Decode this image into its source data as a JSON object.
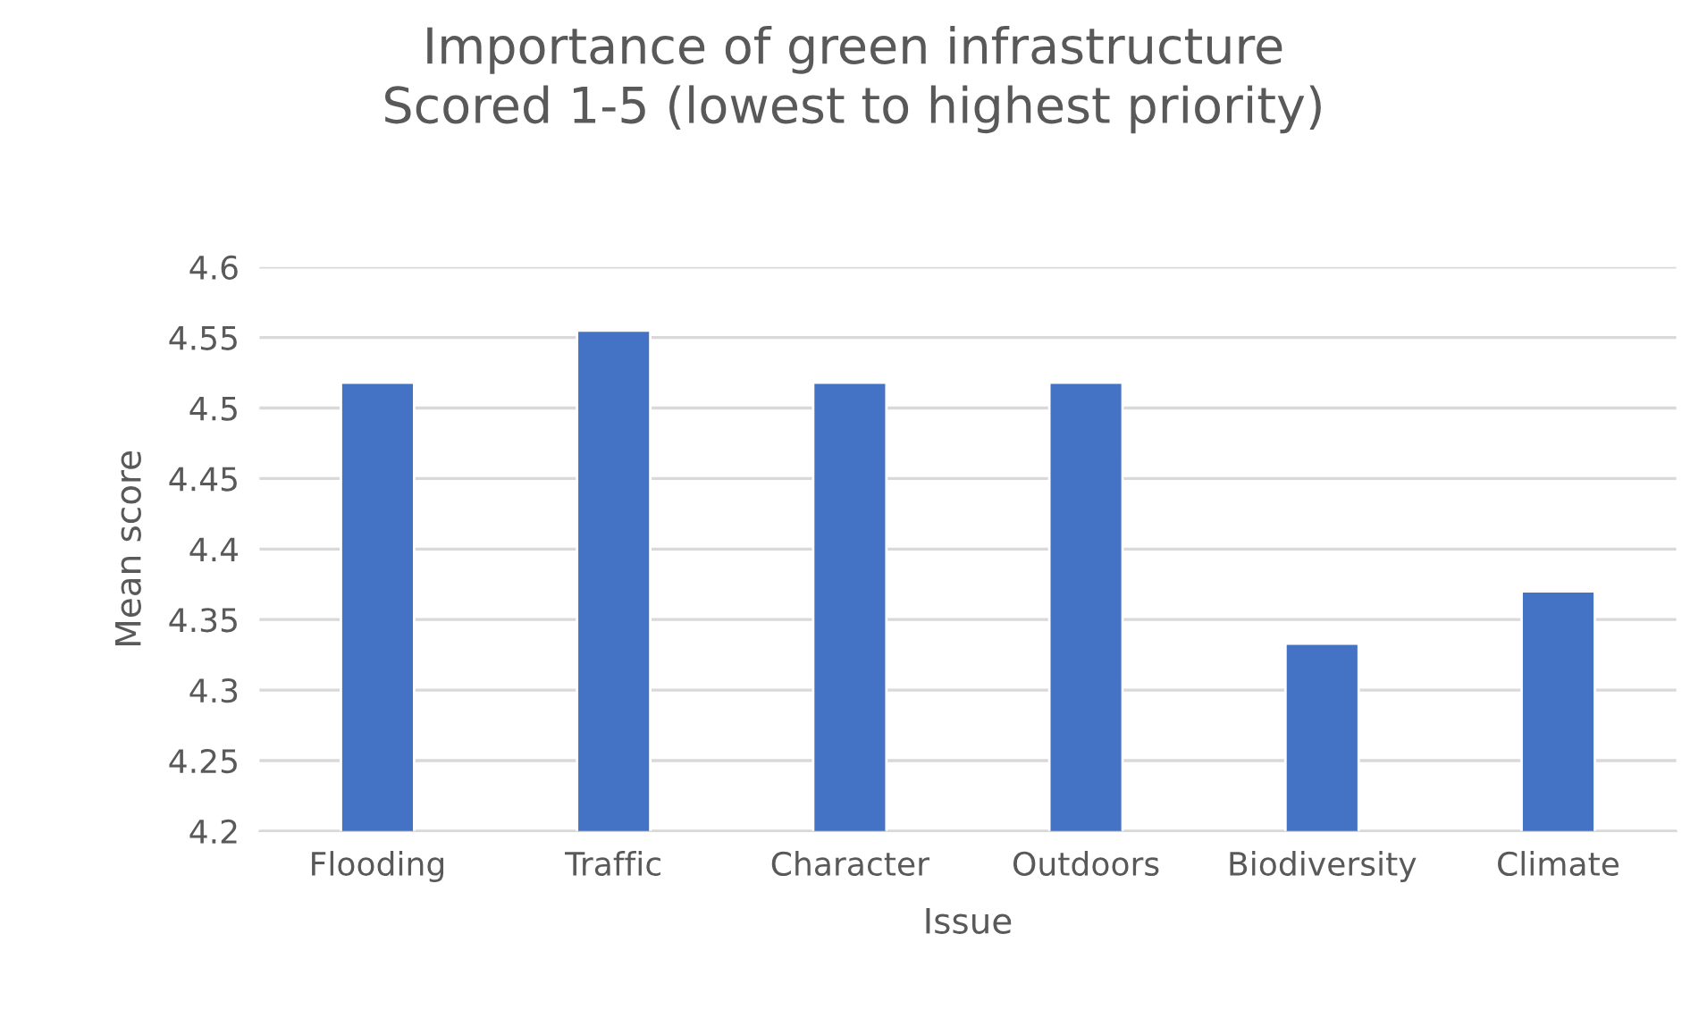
{
  "chart_data": {
    "type": "bar",
    "title": "Importance of green infrastructure\nScored 1-5 (lowest to highest priority)",
    "xlabel": "Issue",
    "ylabel": "Mean score",
    "categories": [
      "Flooding",
      "Traffic",
      "Character",
      "Outdoors",
      "Biodiversity",
      "Climate"
    ],
    "values": [
      4.518,
      4.555,
      4.518,
      4.518,
      4.333,
      4.37
    ],
    "color": "#4472c4",
    "ylim": [
      4.2,
      4.6
    ],
    "yticks": [
      4.2,
      4.25,
      4.3,
      4.35,
      4.4,
      4.45,
      4.5,
      4.55,
      4.6
    ],
    "grid": "y"
  }
}
